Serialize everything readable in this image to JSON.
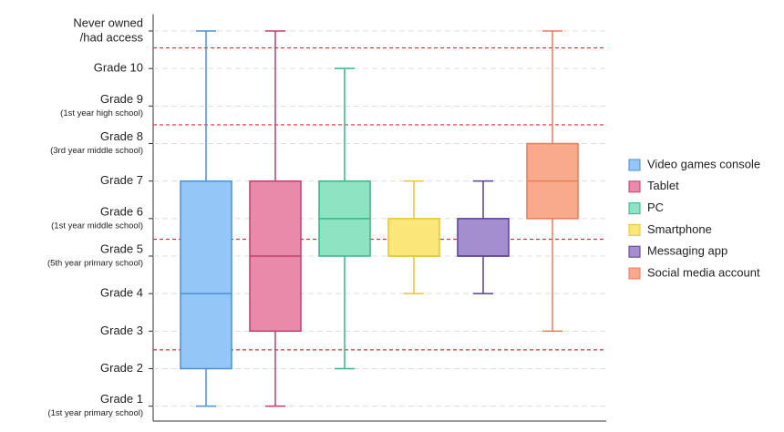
{
  "chart_data": {
    "type": "box",
    "ylim": [
      0.7,
      11.45
    ],
    "yticks": [
      {
        "value": 1,
        "label": "Grade 1",
        "sublabel": "(1st year primary school)"
      },
      {
        "value": 2,
        "label": "Grade 2"
      },
      {
        "value": 3,
        "label": "Grade 3"
      },
      {
        "value": 4,
        "label": "Grade 4"
      },
      {
        "value": 5,
        "label": "Grade 5",
        "sublabel": "(5th year primary school)"
      },
      {
        "value": 6,
        "label": "Grade 6",
        "sublabel": "(1st year middle school)"
      },
      {
        "value": 7,
        "label": "Grade 7"
      },
      {
        "value": 8,
        "label": "Grade 8",
        "sublabel": "(3rd year middle school)"
      },
      {
        "value": 9,
        "label": "Grade 9",
        "sublabel": "(1st year high school)"
      },
      {
        "value": 10,
        "label": "Grade 10"
      },
      {
        "value": 11,
        "label": "Never owned",
        "label_line2": "/had access"
      }
    ],
    "grid": true,
    "reference_lines": {
      "color": "#d9303a",
      "values": [
        10.55,
        8.5,
        5.45,
        2.5
      ]
    },
    "legend": "right",
    "series": [
      {
        "name": "Video games console",
        "color": "#94c6f7",
        "stroke": "#4a90d9",
        "min": 1,
        "q1": 2,
        "median": 4,
        "q3": 7,
        "max": 11
      },
      {
        "name": "Tablet",
        "color": "#e98aaa",
        "stroke": "#c43d6c",
        "min": 1,
        "q1": 3,
        "median": 5,
        "q3": 7,
        "max": 11
      },
      {
        "name": "PC",
        "color": "#8ee3c3",
        "stroke": "#36b686",
        "min": 2,
        "q1": 5,
        "median": 6,
        "q3": 7,
        "max": 10
      },
      {
        "name": "Smartphone",
        "color": "#fbe67a",
        "stroke": "#e8c52a",
        "min": 4,
        "q1": 5,
        "median": 5,
        "q3": 6,
        "max": 7
      },
      {
        "name": "Messaging app",
        "color": "#a58ed0",
        "stroke": "#5b3f95",
        "min": 4,
        "q1": 5,
        "median": 5,
        "q3": 6,
        "max": 7
      },
      {
        "name": "Social media account",
        "color": "#f9aa8c",
        "stroke": "#e57d58",
        "min": 3,
        "q1": 6,
        "median": 7,
        "q3": 8,
        "max": 11
      }
    ]
  }
}
